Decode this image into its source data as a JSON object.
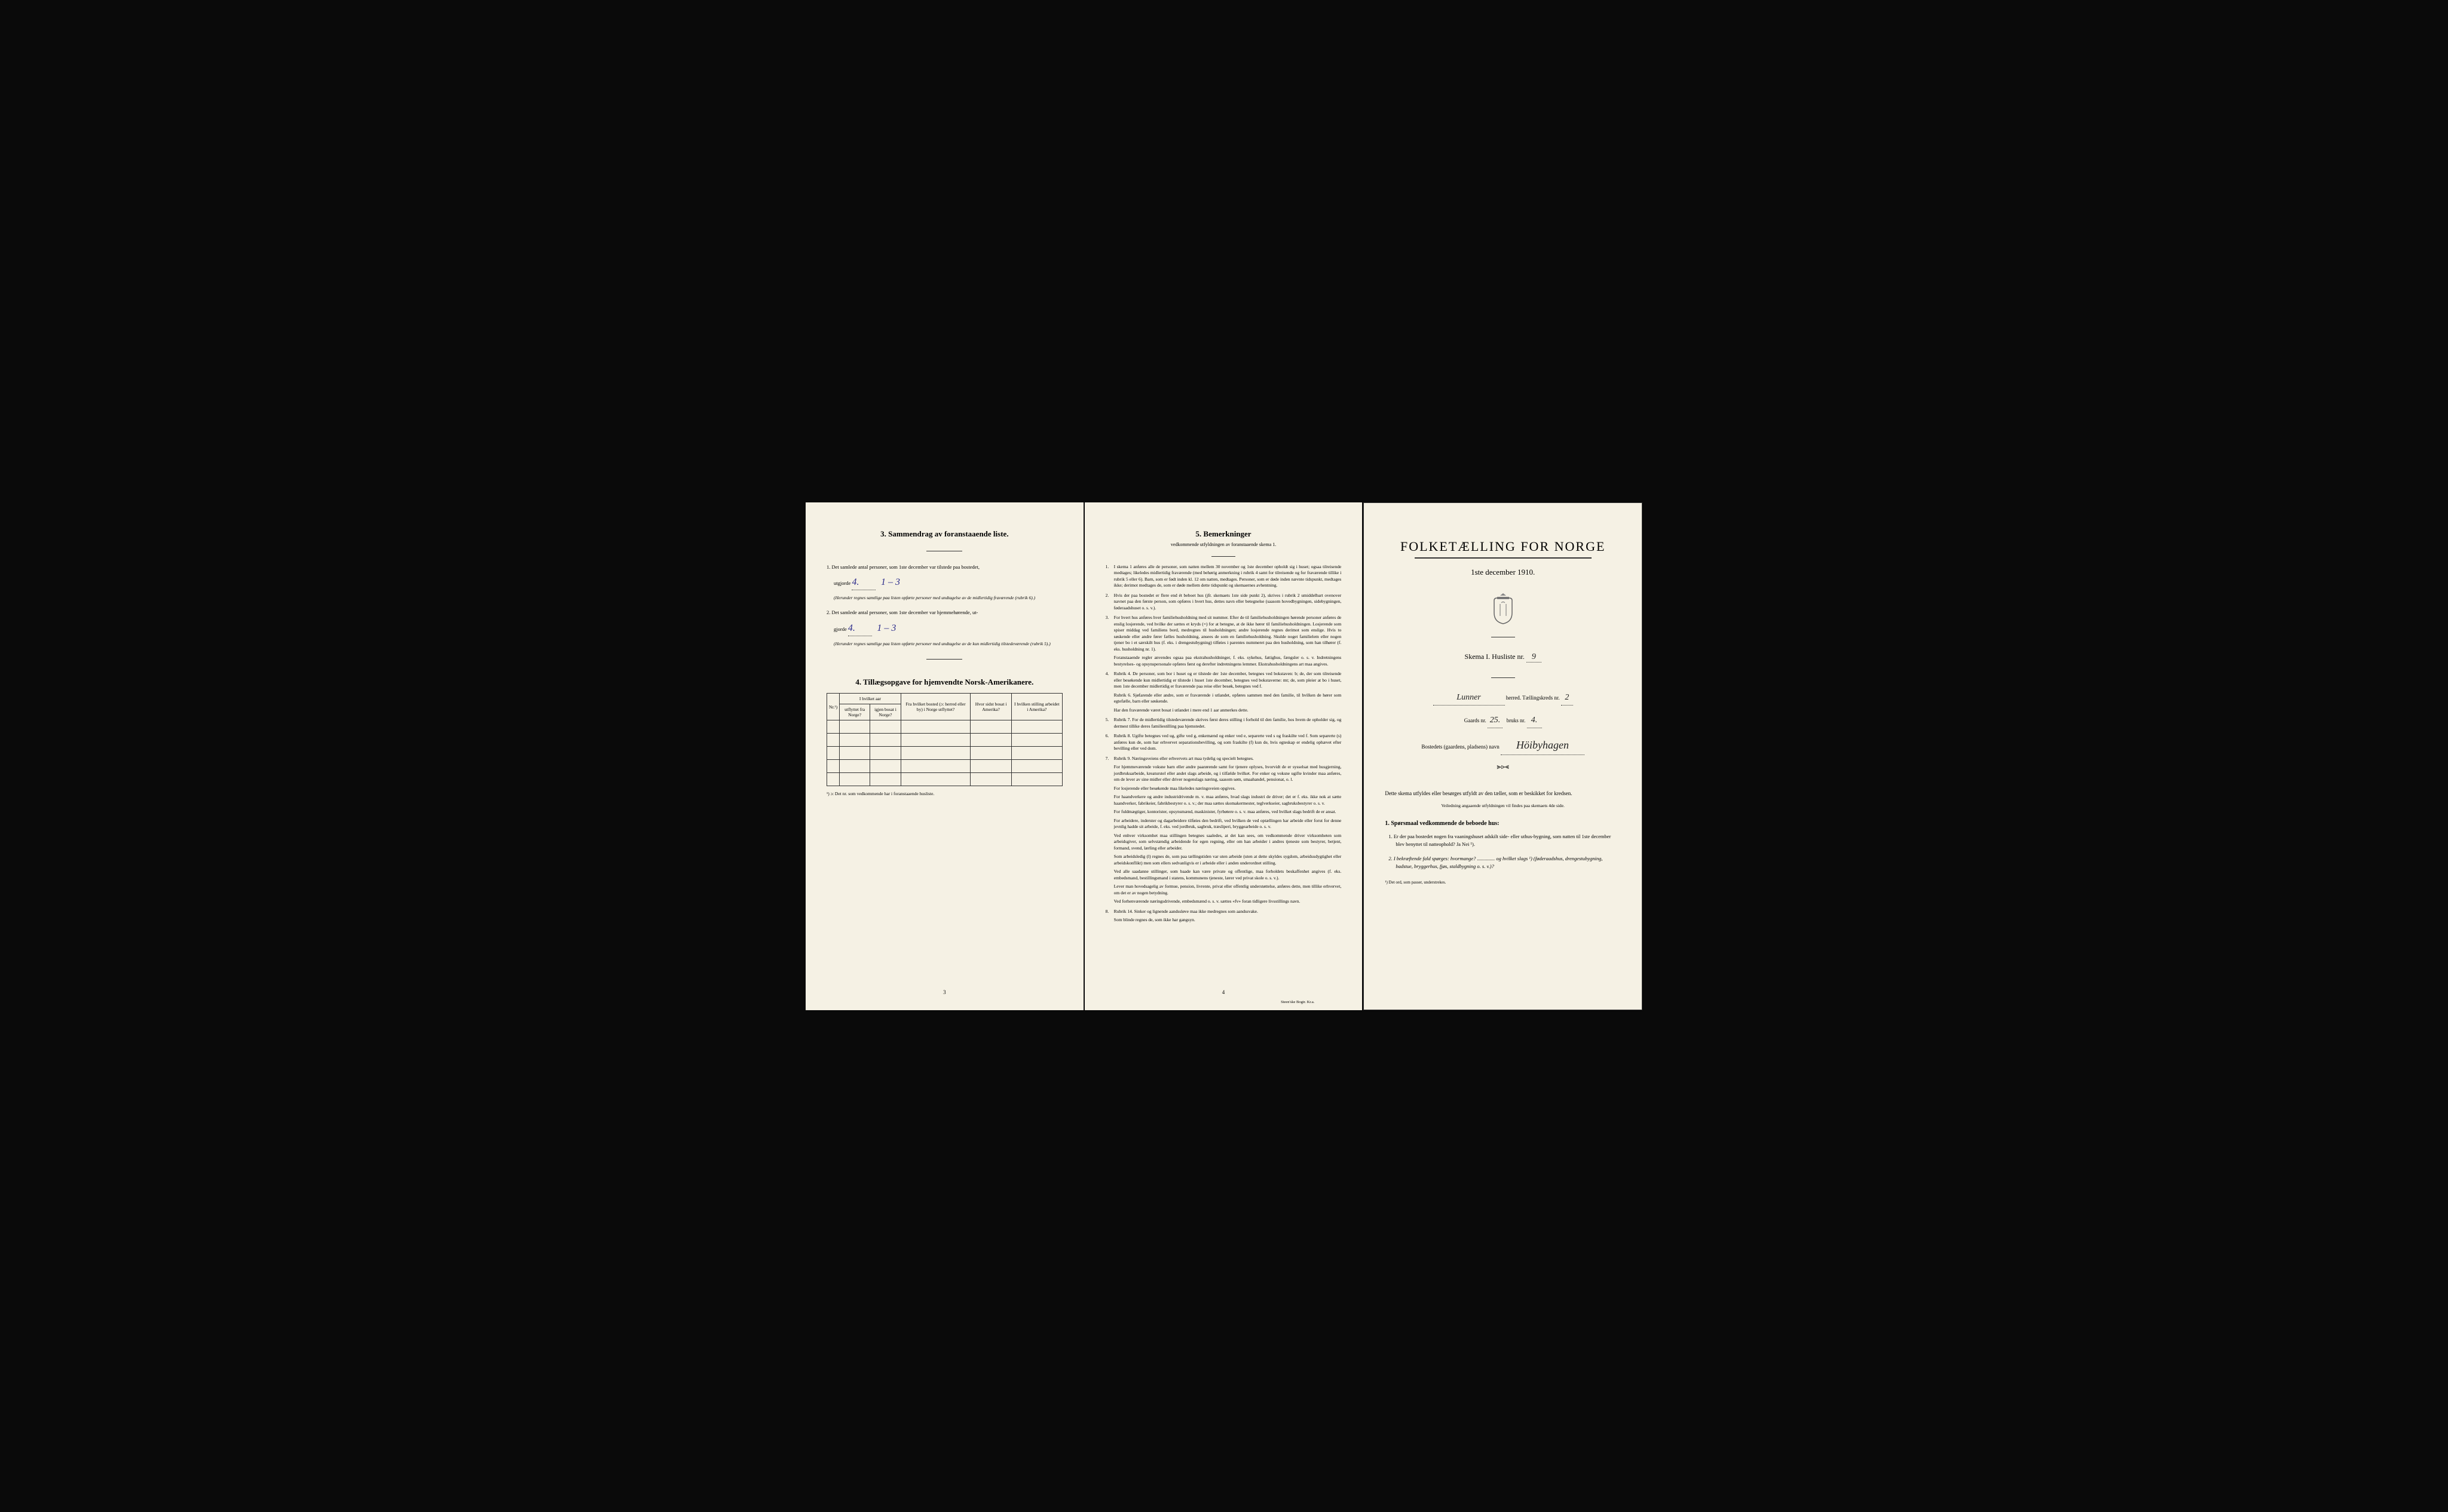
{
  "page3": {
    "section3_title": "3.   Sammendrag av foranstaaende liste.",
    "item1_prefix": "1.  Det samlede antal personer, som 1ste december var tilstede paa bostedet,",
    "item1_label": "utgjorde",
    "item1_value1": "4.",
    "item1_value2": "1 – 3",
    "item1_note": "(Herunder regnes samtlige paa listen opførte personer med undtagelse av de midlertidig fraværende (rubrik 6).)",
    "item2_prefix": "2.  Det samlede antal personer, som 1ste december var hjemmehørende, ut-",
    "item2_label": "gjorde",
    "item2_value1": "4.",
    "item2_value2": "1 – 3",
    "item2_note": "(Herunder regnes samtlige paa listen opførte personer med undtagelse av de kun midlertidig tilstedeværende (rubrik 5).)",
    "section4_title": "4.   Tillægsopgave for hjemvendte Norsk-Amerikanere.",
    "table": {
      "col1": "Nr.¹)",
      "col2_top": "I hvilket aar",
      "col2a": "utflyttet fra Norge?",
      "col2b": "igjen bosat i Norge?",
      "col3": "Fra hvilket bosted (ɔ: herred eller by) i Norge utflyttet?",
      "col4": "Hvor sidst bosat i Amerika?",
      "col5": "I hvilken stilling arbeidet i Amerika?"
    },
    "footnote": "¹) ɔ: Det nr. som vedkommende har i foranstaaende husliste.",
    "page_num": "3"
  },
  "page4": {
    "section5_title": "5.   Bemerkninger",
    "section5_subtitle": "vedkommende utfyldningen av foranstaaende skema 1.",
    "items": [
      {
        "num": "1.",
        "text": "I skema 1 anføres alle de personer, som natten mellem 30 november og 1ste december opholdt sig i huset; ogsaa tilreisende medtages; likeledes midlertidig fraværende (med behørig anmerkning i rubrik 4 samt for tilreisende og for fraværende tillike i rubrik 5 eller 6). Barn, som er født inden kl. 12 om natten, medtages. Personer, som er døde inden nævnte tidspunkt, medtages ikke; derimot medtages de, som er døde mellem dette tidspunkt og skemaernes avhentning."
      },
      {
        "num": "2.",
        "text": "Hvis der paa bostedet er flere end ét beboet hus (jfr. skemaets 1ste side punkt 2), skrives i rubrik 2 umiddelbart ovenover navnet paa den første person, som opføres i hvert hus, dettes navn eller betegnelse (saasom hovedbygningen, sidebygningen, føderaadshuset o. s. v.)."
      },
      {
        "num": "3.",
        "text": "For hvert hus anføres hver familiehusholdning med sit nummer. Efter de til familiehusholdningen hørende personer anføres de enslig losjerende, ved hvilke der sættes et kryds (×) for at betegne, at de ikke hører til familiehusholdningen. Losjerende som spiser middag ved familiens bord, medregnes til husholdningen; andre losjerende regnes derimot som enslige. Hvis to søskende eller andre fører fælles husholdning, ansees de som en familiehusholdning. Skulde noget familielem eller nogen tjener bo i et særskilt hus (f. eks. i drengestubygning) tilføies i parentes nummeret paa den husholdning, som han tilhører (f. eks. husholdning nr. 1).\n\nForanstaaende regler anvendes ogsaa paa ekstrahusholdninger, f. eks. sykehus, fattighus, fængsler o. s. v. Indretningens bestyrelses- og opsynspersonale opføres først og derefter indretningens lemmer. Ekstrahusholdningens art maa angives."
      },
      {
        "num": "4.",
        "text": "Rubrik 4. De personer, som bor i huset og er tilstede der 1ste december, betegnes ved bokstaven: b; de, der som tilreisende eller besøkende kun midlertidig er tilstede i huset 1ste december, betegnes ved bokstaverne: mt; de, som pleier at bo i huset, men 1ste december midlertidig er fraværende paa reise eller besøk, betegnes ved f.\n\nRubrik 6. Sjøfarende eller andre, som er fraværende i utlandet, opføres sammen med den familie, til hvilken de hører som egtefælle, barn eller søskende.\n\nHar den fraværende været bosat i utlandet i mere end 1 aar anmerkes dette."
      },
      {
        "num": "5.",
        "text": "Rubrik 7. For de midlertidig tilstedeværende skrives først deres stilling i forhold til den familie, hos hvem de opholder sig, og dermest tillike deres familiestilling paa hjemstedet."
      },
      {
        "num": "6.",
        "text": "Rubrik 8. Ugifte betegnes ved ug, gifte ved g, enkemænd og enker ved e, separerte ved s og fraskilte ved f. Som separerte (s) anføres kun de, som har erhvervet separationsbevilling, og som fraskilte (f) kun de, hvis egteskap er endelig ophævet efter bevilling eller ved dom."
      },
      {
        "num": "7.",
        "text": "Rubrik 9. Næringsveiens eller erhvervets art maa tydelig og specielt betegnes.\n\nFor hjemmeværende voksne barn eller andre paarørende samt for tjenere oplyses, hvorvidt de er sysselsat med husgjerning, jordbruksarbeide, kreaturstel eller andet slags arbeide, og i tilfælde hvilket. For enker og voksne ugifte kvinder maa anføres, om de lever av sine midler eller driver nogenslags næring, saasom søm, smaahandel, pensionat, o. l.\n\nFor losjerende eller besøkende maa likeledes næringsveien opgives.\n\nFor haandverkere og andre industridrivende m. v. maa anføres, hvad slags industri de driver; det er f. eks. ikke nok at sætte haandverker, fabrikeier, fabrikbestyrer o. s. v.; der maa sættes skomakermester, teglverkseier, sagbruksbestyrer o. s. v.\n\nFor fuldmægtiger, kontorister, opsynsmænd, maskinister, fyrbøtere o. s. v. maa anføres, ved hvilket slags bedrift de er ansat.\n\nFor arbeidere, inderster og dagarbeidere tilføies den bedrift, ved hvilken de ved optællingen har arbeide eller forut for denne jevnlig hadde sit arbeide, f. eks. ved jordbruk, sagbruk, træsliperi, bryggearbeide o. s. v.\n\nVed enhver virksomhet maa stillingen betegnes saaledes, at det kan sees, om vedkommende driver virksomheten som arbeidsgiver, som selvstændig arbeidende for egen regning, eller om han arbeider i andres tjeneste som bestyrer, betjent, formand, svend, lærling eller arbeider.\n\nSom arbeidsledig (l) regnes de, som paa tællingstiden var uten arbeide (uten at dette skyldes sygdom, arbeidsudygtighet eller arbeidskonflikt) men som ellers sedvanligvis er i arbeide eller i anden underordnet stilling.\n\nVed alle saadanne stillinger, som baade kan være private og offentlige, maa forholdets beskaffenhet angives (f. eks. embedsmand, bestillingsmand i statens, kommunens tjeneste, lærer ved privat skole o. s. v.).\n\nLever man hovedsagelig av formue, pension, livrente, privat eller offentlig understøttelse, anføres dette, men tillike erhvervet, om det er av nogen betydning.\n\nVed forhenværende næringsdrivende, embedsmænd o. s. v. sættes «fv» foran tidligere livsstillings navn."
      },
      {
        "num": "8.",
        "text": "Rubrik 14. Sinker og lignende aandssløve maa ikke medregnes som aandssvake.\n\nSom blinde regnes de, som ikke har gangsyn."
      }
    ],
    "page_num": "4",
    "printer": "Steen'ske Bogtr.   Kr.a."
  },
  "page1": {
    "main_title": "FOLKETÆLLING FOR NORGE",
    "date": "1ste december 1910.",
    "skema_label": "Skema I.   Husliste nr.",
    "skema_nr": "9",
    "herred_value": "Lunner",
    "herred_label": "herred.   Tællingskreds nr.",
    "kreds_nr": "2",
    "gaards_label": "Gaards nr.",
    "gaards_nr": "25.",
    "bruks_label": "bruks nr.",
    "bruks_nr": "4.",
    "bosted_label": "Bostedets (gaardens, pladsens) navn",
    "bosted_value": "Höibyhagen",
    "intro": "Dette skema utfyldes eller besørges utfyldt av den tæller, som er beskikket for kredsen.",
    "intro_sub": "Veiledning angaaende utfyldningen vil findes paa skemaets 4de side.",
    "q_header": "1. Spørsmaal vedkommende de beboede hus:",
    "q1": "1.  Er der paa bostedet nogen fra vaaningshuset adskilt side- eller uthus-bygning, som natten til 1ste december blev benyttet til natteophold?   Ja   Nei ¹).",
    "q2": "2.  I bekræftende fald spørges: hvormange? .............. og hvilket slags ¹) (føderaadshus, drengestubygning, badstue, bryggerhus, fjøs, staldbygning o. s. v.)?",
    "footnote": "¹) Det ord, som passer, understrekes."
  },
  "colors": {
    "paper": "#f5f1e4",
    "ink": "#222222",
    "handwriting": "#2a2a8a",
    "background": "#0a0a0a"
  }
}
